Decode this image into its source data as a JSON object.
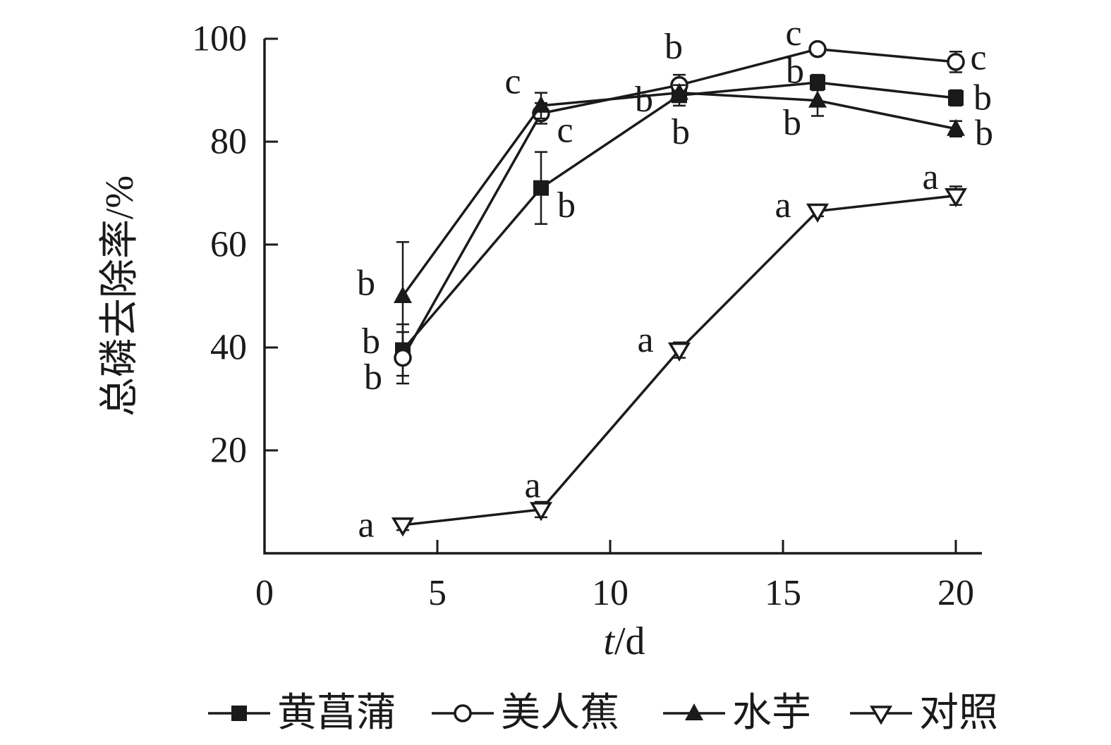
{
  "background": "#ffffff",
  "line_color": "#1a1a1a",
  "chart_data": {
    "type": "line",
    "title": "",
    "xlabel": "t/d",
    "xlabel_var": "t",
    "xlabel_unit": "/d",
    "ylabel": "总磷去除率/%",
    "x": [
      4,
      8,
      12,
      16,
      20
    ],
    "xticks": [
      0,
      5,
      10,
      15,
      20
    ],
    "yticks": [
      20,
      40,
      60,
      80,
      100
    ],
    "xlim": [
      0,
      20.8
    ],
    "ylim": [
      0,
      103
    ],
    "grid": false,
    "legend_position": "bottom",
    "series": [
      {
        "name": "黄菖蒲",
        "marker": "square-filled",
        "values": [
          39.5,
          71,
          89,
          91.5,
          88.5
        ],
        "errors": [
          5,
          7,
          2,
          1.5,
          1.5
        ],
        "labels": [
          "b",
          "b",
          "b",
          "b",
          "b"
        ],
        "label_offsets": [
          [
            -45,
            -12
          ],
          [
            36,
            25
          ],
          [
            2,
            52
          ],
          [
            -32,
            -16
          ],
          [
            38,
            0
          ]
        ]
      },
      {
        "name": "美人蕉",
        "marker": "circle-open",
        "values": [
          38,
          85.5,
          91,
          98,
          95.5
        ],
        "errors": [
          5,
          2,
          2,
          1,
          2
        ],
        "labels": [
          "b",
          "c",
          "b",
          "c",
          "c"
        ],
        "label_offsets": [
          [
            -42,
            28
          ],
          [
            34,
            24
          ],
          [
            -8,
            -54
          ],
          [
            -34,
            -22
          ],
          [
            32,
            -6
          ]
        ]
      },
      {
        "name": "水芋",
        "marker": "triangle-filled",
        "values": [
          50,
          87,
          89.5,
          88,
          82.5
        ],
        "errors": [
          10.5,
          2.5,
          1.5,
          3,
          1.5
        ],
        "labels": [
          "b",
          "c",
          "b",
          "b",
          "b"
        ],
        "label_offsets": [
          [
            -52,
            -18
          ],
          [
            -40,
            -34
          ],
          [
            -50,
            10
          ],
          [
            -36,
            32
          ],
          [
            40,
            6
          ]
        ]
      },
      {
        "name": "对照",
        "marker": "triangle-down-open",
        "values": [
          5.5,
          8.5,
          39.5,
          66.5,
          69.5
        ],
        "errors": [
          1,
          1.5,
          1.5,
          1,
          1.8
        ],
        "labels": [
          "a",
          "a",
          "a",
          "a",
          "a"
        ],
        "label_offsets": [
          [
            -52,
            0
          ],
          [
            -12,
            -34
          ],
          [
            -48,
            -14
          ],
          [
            -49,
            -8
          ],
          [
            -36,
            -26
          ]
        ]
      }
    ]
  }
}
